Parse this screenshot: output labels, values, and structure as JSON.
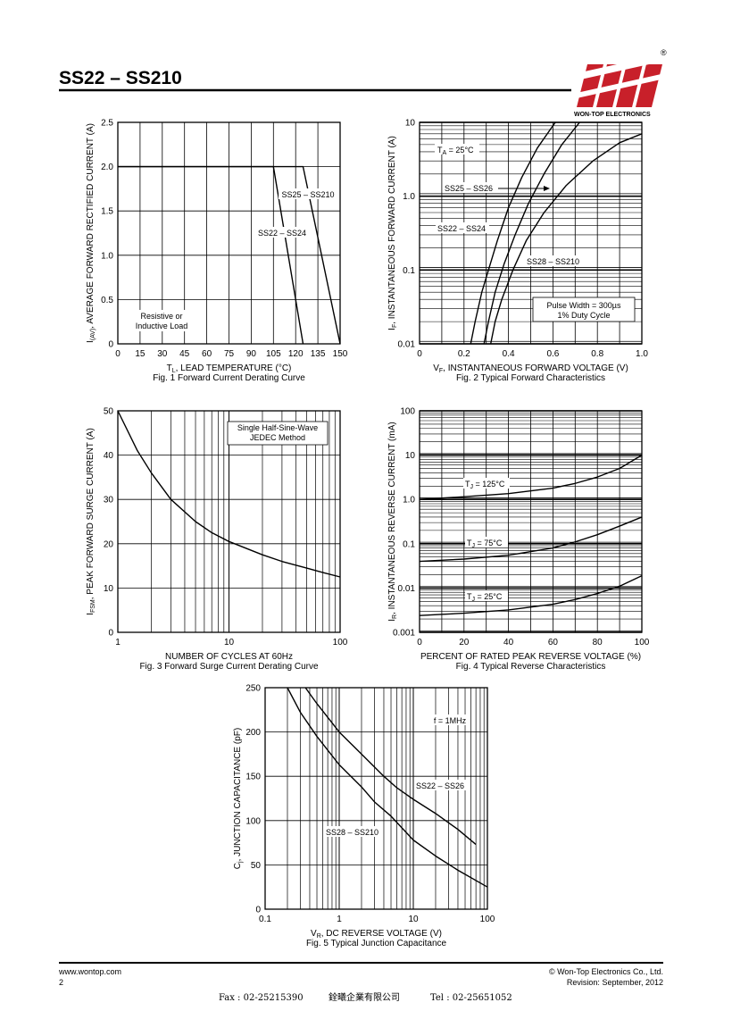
{
  "header": {
    "title": "SS22 – SS210",
    "brand": "WON-TOP ELECTRONICS",
    "registered": "®"
  },
  "footer": {
    "website": "www.wontop.com",
    "page": "2",
    "copyright": "© Won-Top Electronics Co., Ltd.",
    "revision": "Revision: September, 2012",
    "fax": "Fax : 02-25215390",
    "company": "銓曦企業有限公司",
    "tel": "Tel : 02-25651052"
  },
  "colors": {
    "line": "#000000",
    "logo": "#c8202a",
    "background": "#ffffff"
  },
  "chart_data": [
    {
      "type": "line",
      "title": "Fig. 1 Forward Current Derating Curve",
      "xlabel": "T",
      "xlabel_sub": "L",
      "xlabel_rest": ", LEAD TEMPERATURE (°C)",
      "ylabel": "I",
      "ylabel_sub": "(AV)",
      "ylabel_rest": ", AVERAGE FORWARD RECTIFIED CURRENT (A)",
      "xlim": [
        0,
        150
      ],
      "ylim": [
        0,
        2.5
      ],
      "xticks": [
        0,
        15,
        30,
        45,
        60,
        75,
        90,
        105,
        120,
        135,
        150
      ],
      "yticks": [
        0,
        0.5,
        1.0,
        1.5,
        2.0,
        2.5
      ],
      "ytick_labels": [
        "0",
        "0.5",
        "1.0",
        "1.5",
        "2.0",
        "2.5"
      ],
      "series": [
        {
          "name": "SS25 – SS210",
          "x": [
            0,
            125,
            150
          ],
          "y": [
            2.0,
            2.0,
            0
          ]
        },
        {
          "name": "SS22 – SS24",
          "x": [
            0,
            105,
            125
          ],
          "y": [
            2.0,
            2.0,
            0
          ]
        }
      ],
      "annotations": [
        "Resistive or",
        "Inductive Load"
      ]
    },
    {
      "type": "line",
      "title": "Fig. 2 Typical Forward Characteristics",
      "xlabel": "V",
      "xlabel_sub": "F",
      "xlabel_rest": ", INSTANTANEOUS FORWARD VOLTAGE (V)",
      "ylabel": "I",
      "ylabel_sub": "F",
      "ylabel_rest": ", INSTANTANEOUS FORWARD CURRENT (A)",
      "xlim": [
        0,
        1.0
      ],
      "ylim": [
        0.01,
        10
      ],
      "yscale": "log",
      "xticks": [
        0,
        0.2,
        0.4,
        0.6,
        0.8,
        1.0
      ],
      "xtick_labels": [
        "0",
        "0.2",
        "0.4",
        "0.6",
        "0.8",
        "1.0"
      ],
      "yticks": [
        0.01,
        0.1,
        1.0,
        10
      ],
      "ytick_labels": [
        "0.01",
        "0.1",
        "1.0",
        "10"
      ],
      "series": [
        {
          "name": "SS22 – SS24",
          "x": [
            0.23,
            0.25,
            0.28,
            0.31,
            0.35,
            0.4,
            0.46,
            0.53,
            0.6,
            0.63
          ],
          "y": [
            0.01,
            0.02,
            0.05,
            0.1,
            0.25,
            0.7,
            1.8,
            4.5,
            9,
            12
          ]
        },
        {
          "name": "SS25 – SS26",
          "x": [
            0.29,
            0.31,
            0.34,
            0.38,
            0.43,
            0.49,
            0.56,
            0.64,
            0.72,
            0.75
          ],
          "y": [
            0.01,
            0.02,
            0.05,
            0.12,
            0.3,
            0.8,
            2,
            5,
            10,
            12
          ]
        },
        {
          "name": "SS28 – SS210",
          "x": [
            0.32,
            0.34,
            0.37,
            0.42,
            0.48,
            0.56,
            0.66,
            0.78,
            0.9,
            1.0
          ],
          "y": [
            0.01,
            0.02,
            0.04,
            0.1,
            0.25,
            0.6,
            1.4,
            3,
            5.3,
            7
          ]
        }
      ],
      "annotations": [
        "T",
        "A",
        " = 25°C",
        "Pulse Width = 300µs",
        "1% Duty Cycle"
      ]
    },
    {
      "type": "line",
      "title": "Fig. 3 Forward Surge Current Derating Curve",
      "xlabel": "NUMBER OF CYCLES AT 60Hz",
      "ylabel": "I",
      "ylabel_sub": "FSM",
      "ylabel_rest": ", PEAK FORWARD SURGE CURRENT (A)",
      "xlim": [
        1,
        100
      ],
      "xscale": "log",
      "ylim": [
        0,
        50
      ],
      "xticks": [
        1,
        10,
        100
      ],
      "yticks": [
        0,
        10,
        20,
        30,
        40,
        50
      ],
      "series": [
        {
          "name": "",
          "x": [
            1,
            1.5,
            2,
            3,
            5,
            7,
            10,
            20,
            30,
            50,
            70,
            100
          ],
          "y": [
            50,
            41,
            36,
            30,
            25,
            22.5,
            20.5,
            17.5,
            16,
            14.5,
            13.5,
            12.5
          ]
        }
      ],
      "annotations": [
        "Single Half-Sine-Wave",
        "JEDEC Method"
      ]
    },
    {
      "type": "line",
      "title": "Fig. 4 Typical Reverse Characteristics",
      "xlabel": "PERCENT OF RATED PEAK REVERSE VOLTAGE (%)",
      "ylabel": "I",
      "ylabel_sub": "R",
      "ylabel_rest": ", INSTANTANEOUS REVERSE CURRENT (mA)",
      "xlim": [
        0,
        100
      ],
      "ylim": [
        0.001,
        100
      ],
      "yscale": "log",
      "xticks": [
        0,
        20,
        40,
        60,
        80,
        100
      ],
      "yticks": [
        0.001,
        0.01,
        0.1,
        1.0,
        10,
        100
      ],
      "ytick_labels": [
        "0.001",
        "0.01",
        "0.1",
        "1.0",
        "10",
        "100"
      ],
      "series": [
        {
          "name": "T",
          "name_sub": "J",
          "name_rest": " = 125°C",
          "x": [
            0,
            20,
            40,
            60,
            70,
            80,
            90,
            100
          ],
          "y": [
            1.0,
            1.15,
            1.35,
            1.8,
            2.3,
            3.2,
            5.0,
            10
          ]
        },
        {
          "name": "T",
          "name_sub": "J",
          "name_rest": " = 75°C",
          "x": [
            0,
            20,
            40,
            60,
            70,
            80,
            90,
            100
          ],
          "y": [
            0.04,
            0.045,
            0.055,
            0.08,
            0.11,
            0.16,
            0.25,
            0.4
          ]
        },
        {
          "name": "T",
          "name_sub": "J",
          "name_rest": " = 25°C",
          "x": [
            0,
            20,
            40,
            60,
            70,
            80,
            90,
            100
          ],
          "y": [
            0.0024,
            0.0027,
            0.0032,
            0.0043,
            0.0055,
            0.0075,
            0.011,
            0.019
          ]
        }
      ]
    },
    {
      "type": "line",
      "title": "Fig. 5 Typical Junction Capacitance",
      "xlabel": "V",
      "xlabel_sub": "R",
      "xlabel_rest": ", DC REVERSE VOLTAGE (V)",
      "ylabel": "C",
      "ylabel_sub": "j",
      "ylabel_rest": ", JUNCTION CAPACITANCE (pF)",
      "xlim": [
        0.1,
        100
      ],
      "xscale": "log",
      "ylim": [
        0,
        250
      ],
      "xticks": [
        0.1,
        1,
        10,
        100
      ],
      "xtick_labels": [
        "0.1",
        "1",
        "10",
        "100"
      ],
      "yticks": [
        0,
        50,
        100,
        150,
        200,
        250
      ],
      "series": [
        {
          "name": "SS22 – SS26",
          "x": [
            0.35,
            0.5,
            1,
            2,
            4,
            6,
            10,
            20,
            40,
            70
          ],
          "y": [
            250,
            232,
            200,
            175,
            150,
            137,
            124,
            108,
            90,
            73
          ]
        },
        {
          "name": "SS28 – SS210",
          "x": [
            0.2,
            0.3,
            0.5,
            1,
            2,
            3,
            5,
            10,
            20,
            40,
            100
          ],
          "y": [
            250,
            222,
            195,
            163,
            138,
            121,
            105,
            78,
            60,
            44,
            25
          ]
        }
      ],
      "annotations": [
        "f = 1MHz"
      ]
    }
  ]
}
